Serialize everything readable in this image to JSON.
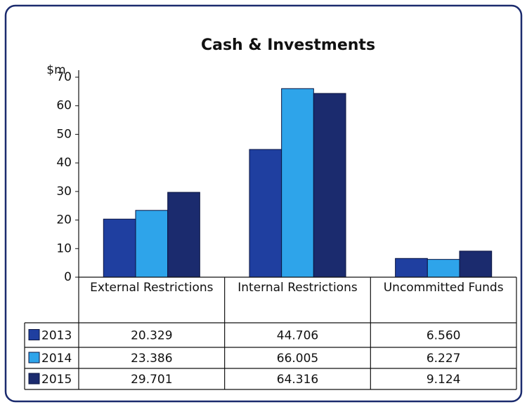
{
  "chart_data": {
    "type": "bar",
    "title": "Cash & Investments",
    "y_label": "$m",
    "categories": [
      "External Restrictions",
      "Internal Restrictions",
      "Uncommitted Funds"
    ],
    "series": [
      {
        "name": "2013",
        "color": "#1f3fa0",
        "values": [
          20.329,
          44.706,
          6.56
        ],
        "value_labels": [
          "20.329",
          "44.706",
          "6.560"
        ]
      },
      {
        "name": "2014",
        "color": "#2ea4ea",
        "values": [
          23.386,
          66.005,
          6.227
        ],
        "value_labels": [
          "23.386",
          "66.005",
          "6.227"
        ]
      },
      {
        "name": "2015",
        "color": "#1b2b6e",
        "values": [
          29.701,
          64.316,
          9.124
        ],
        "value_labels": [
          "29.701",
          "64.316",
          "9.124"
        ]
      }
    ],
    "ylim": [
      0,
      70
    ],
    "yticks": [
      0,
      10,
      20,
      30,
      40,
      50,
      60,
      70
    ],
    "grid": false
  }
}
